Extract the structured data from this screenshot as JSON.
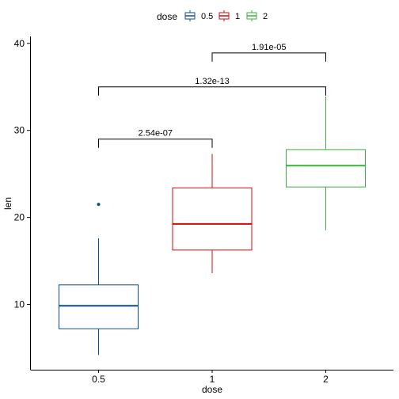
{
  "chart_data": {
    "type": "box",
    "xlabel": "dose",
    "ylabel": "len",
    "categories": [
      "0.5",
      "1",
      "2"
    ],
    "ylim": [
      2.5,
      40.8
    ],
    "yticks": [
      10,
      20,
      30,
      40
    ],
    "legend": {
      "title": "dose",
      "position": "top",
      "entries": [
        "0.5",
        "1",
        "2"
      ]
    },
    "series": [
      {
        "name": "0.5",
        "color": "#0B4F8A",
        "q1": 7.2,
        "median": 9.85,
        "q3": 12.25,
        "whisker_low": 4.2,
        "whisker_high": 17.6,
        "outliers": [
          21.5
        ]
      },
      {
        "name": "1",
        "color": "#CC0C0C",
        "q1": 16.25,
        "median": 19.25,
        "q3": 23.4,
        "whisker_low": 13.6,
        "whisker_high": 27.3,
        "outliers": []
      },
      {
        "name": "2",
        "color": "#3FAE3F",
        "q1": 23.5,
        "median": 25.95,
        "q3": 27.8,
        "whisker_low": 18.5,
        "whisker_high": 33.9,
        "outliers": []
      }
    ],
    "comparisons": [
      {
        "from": "0.5",
        "to": "1",
        "y": 29.0,
        "label": "2.54e-07"
      },
      {
        "from": "0.5",
        "to": "2",
        "y": 35.0,
        "label": "1.32e-13"
      },
      {
        "from": "1",
        "to": "2",
        "y": 38.9,
        "label": "1.91e-05"
      }
    ],
    "grid": false
  }
}
